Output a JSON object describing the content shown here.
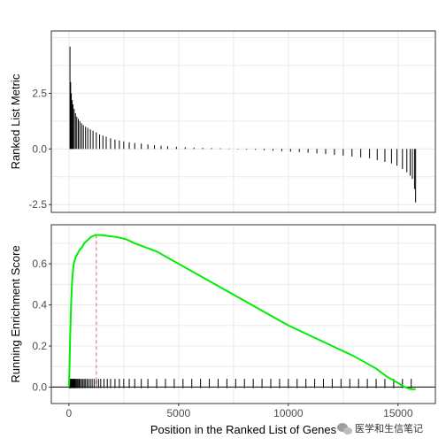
{
  "chart_data": [
    {
      "type": "bar",
      "panel": "top",
      "ylabel": "Ranked List Metric",
      "xlabel": "",
      "xlim": [
        -800,
        16700
      ],
      "ylim": [
        -2.85,
        5.3
      ],
      "yticks": [
        -2.5,
        0.0,
        2.5
      ],
      "ytick_labels": [
        "-2.5",
        "0.0",
        "2.5"
      ],
      "grid": true,
      "bar_color": "#000000",
      "bars": [
        {
          "x": 50,
          "v": 4.6
        },
        {
          "x": 80,
          "v": 3.0
        },
        {
          "x": 110,
          "v": 2.5
        },
        {
          "x": 150,
          "v": 2.2
        },
        {
          "x": 190,
          "v": 2.0
        },
        {
          "x": 240,
          "v": 1.8
        },
        {
          "x": 300,
          "v": 1.6
        },
        {
          "x": 360,
          "v": 1.45
        },
        {
          "x": 430,
          "v": 1.35
        },
        {
          "x": 500,
          "v": 1.25
        },
        {
          "x": 580,
          "v": 1.15
        },
        {
          "x": 660,
          "v": 1.07
        },
        {
          "x": 760,
          "v": 1.0
        },
        {
          "x": 860,
          "v": 0.95
        },
        {
          "x": 980,
          "v": 0.88
        },
        {
          "x": 1100,
          "v": 0.82
        },
        {
          "x": 1250,
          "v": 0.75
        },
        {
          "x": 1400,
          "v": 0.65
        },
        {
          "x": 1550,
          "v": 0.6
        },
        {
          "x": 1700,
          "v": 0.55
        },
        {
          "x": 1900,
          "v": 0.48
        },
        {
          "x": 2100,
          "v": 0.42
        },
        {
          "x": 2300,
          "v": 0.38
        },
        {
          "x": 2500,
          "v": 0.34
        },
        {
          "x": 2750,
          "v": 0.3
        },
        {
          "x": 3000,
          "v": 0.27
        },
        {
          "x": 3300,
          "v": 0.24
        },
        {
          "x": 3600,
          "v": 0.2
        },
        {
          "x": 3900,
          "v": 0.17
        },
        {
          "x": 4200,
          "v": 0.14
        },
        {
          "x": 4500,
          "v": 0.12
        },
        {
          "x": 4900,
          "v": 0.1
        },
        {
          "x": 5300,
          "v": 0.08
        },
        {
          "x": 5700,
          "v": 0.06
        },
        {
          "x": 6100,
          "v": 0.05
        },
        {
          "x": 6500,
          "v": 0.04
        },
        {
          "x": 6900,
          "v": 0.03
        },
        {
          "x": 7300,
          "v": 0.02
        },
        {
          "x": 7700,
          "v": -0.02
        },
        {
          "x": 8100,
          "v": -0.03
        },
        {
          "x": 8500,
          "v": -0.04
        },
        {
          "x": 8900,
          "v": -0.06
        },
        {
          "x": 9300,
          "v": -0.08
        },
        {
          "x": 9700,
          "v": -0.1
        },
        {
          "x": 10100,
          "v": -0.12
        },
        {
          "x": 10500,
          "v": -0.14
        },
        {
          "x": 10900,
          "v": -0.17
        },
        {
          "x": 11300,
          "v": -0.2
        },
        {
          "x": 11700,
          "v": -0.23
        },
        {
          "x": 12100,
          "v": -0.27
        },
        {
          "x": 12500,
          "v": -0.3
        },
        {
          "x": 12900,
          "v": -0.34
        },
        {
          "x": 13300,
          "v": -0.38
        },
        {
          "x": 13700,
          "v": -0.42
        },
        {
          "x": 14050,
          "v": -0.5
        },
        {
          "x": 14400,
          "v": -0.58
        },
        {
          "x": 14700,
          "v": -0.65
        },
        {
          "x": 14950,
          "v": -0.75
        },
        {
          "x": 15200,
          "v": -0.9
        },
        {
          "x": 15400,
          "v": -1.05
        },
        {
          "x": 15550,
          "v": -1.2
        },
        {
          "x": 15650,
          "v": -1.35
        },
        {
          "x": 15750,
          "v": -1.8
        },
        {
          "x": 15800,
          "v": -2.4
        }
      ]
    },
    {
      "type": "line",
      "panel": "bottom",
      "ylabel": "Running Enrichment Score",
      "xlabel": "Position in the Ranked List of Genes",
      "xlim": [
        -800,
        16700
      ],
      "ylim": [
        -0.08,
        0.79
      ],
      "xticks": [
        0,
        5000,
        10000,
        15000
      ],
      "xtick_labels": [
        "0",
        "5000",
        "10000",
        "15000"
      ],
      "yticks": [
        0.0,
        0.2,
        0.4,
        0.6
      ],
      "ytick_labels": [
        "0.0",
        "0.2",
        "0.4",
        "0.6"
      ],
      "grid": true,
      "line_color": "#00ee00",
      "peak_line_color": "#e06666",
      "peak_x": 1250,
      "x": [
        0,
        30,
        60,
        100,
        150,
        220,
        300,
        400,
        500,
        600,
        700,
        800,
        900,
        1000,
        1100,
        1200,
        1300,
        1500,
        1800,
        2200,
        2600,
        3000,
        3500,
        4000,
        5000,
        6000,
        7000,
        8000,
        9000,
        10000,
        11000,
        12000,
        13000,
        13500,
        14000,
        14500,
        15000,
        15300,
        15600,
        15800
      ],
      "y": [
        0.0,
        0.1,
        0.25,
        0.4,
        0.52,
        0.6,
        0.63,
        0.65,
        0.67,
        0.68,
        0.7,
        0.71,
        0.72,
        0.73,
        0.735,
        0.74,
        0.74,
        0.74,
        0.735,
        0.73,
        0.72,
        0.7,
        0.68,
        0.66,
        0.6,
        0.54,
        0.48,
        0.42,
        0.36,
        0.3,
        0.25,
        0.2,
        0.15,
        0.12,
        0.09,
        0.05,
        0.02,
        0.0,
        -0.01,
        -0.01
      ],
      "hits": [
        10,
        25,
        40,
        60,
        80,
        100,
        125,
        150,
        180,
        210,
        240,
        270,
        300,
        340,
        380,
        420,
        470,
        520,
        580,
        640,
        700,
        760,
        830,
        900,
        980,
        1060,
        1150,
        1250,
        1350,
        1450,
        1600,
        1750,
        1900,
        2100,
        2300,
        2500,
        2750,
        3000,
        3300,
        3600,
        4000,
        4400,
        4800,
        5200,
        5600,
        6000,
        6400,
        6800,
        7200,
        7600,
        8000,
        8400,
        8800,
        9200,
        9600,
        10000,
        10400,
        10800,
        11200,
        11600,
        12000,
        12400,
        12800,
        13200,
        13600,
        14000,
        14400,
        14800,
        15200,
        15600
      ]
    }
  ],
  "watermark": {
    "icon": "wechat-icon",
    "text": "医学和生信笔记"
  }
}
